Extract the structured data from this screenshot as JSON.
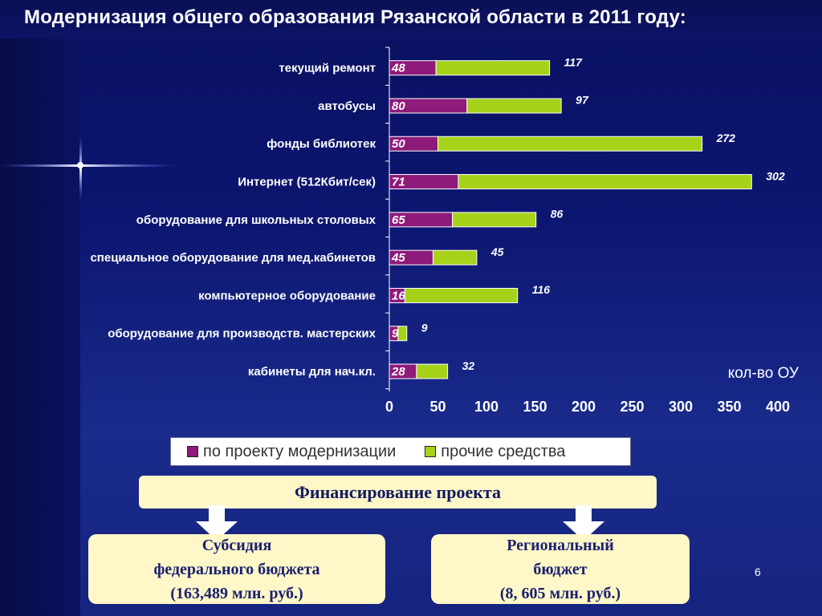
{
  "title": "Модернизация общего образования Рязанской области в 2011 году:",
  "colors": {
    "project": "#8e1a7a",
    "other": "#a6d21a",
    "label_text": "#ffffff",
    "axis_text": "#ffffff"
  },
  "chart_data": {
    "type": "bar",
    "orientation": "horizontal",
    "stacked": true,
    "categories": [
      "текущий ремонт",
      "автобусы",
      "фонды библиотек",
      "Интернет (512Кбит/сек)",
      "оборудование для школьных столовых",
      "специальное оборудование для мед.кабинетов",
      "компьютерное оборудование",
      "оборудование для производств. мастерских",
      "кабинеты для нач.кл."
    ],
    "series": [
      {
        "name": "по проекту модернизации",
        "values": [
          48,
          80,
          50,
          71,
          65,
          45,
          16,
          9,
          28
        ]
      },
      {
        "name": "прочие средства",
        "values": [
          117,
          97,
          272,
          302,
          86,
          45,
          116,
          9,
          32
        ]
      }
    ],
    "xlabel": "кол-во ОУ",
    "xlim": [
      0,
      400
    ],
    "xticks": [
      0,
      50,
      100,
      150,
      200,
      250,
      300,
      350,
      400
    ],
    "legend": "bottom"
  },
  "financing": {
    "title": "Финансирование проекта",
    "federal": {
      "line1": "Субсидия",
      "line2": "федерального бюджета",
      "line3": "(163,489 млн. руб.)"
    },
    "regional": {
      "line1": "Региональный",
      "line2": "бюджет",
      "line3": "(8, 605 млн. руб.)"
    }
  },
  "page_number": "6"
}
